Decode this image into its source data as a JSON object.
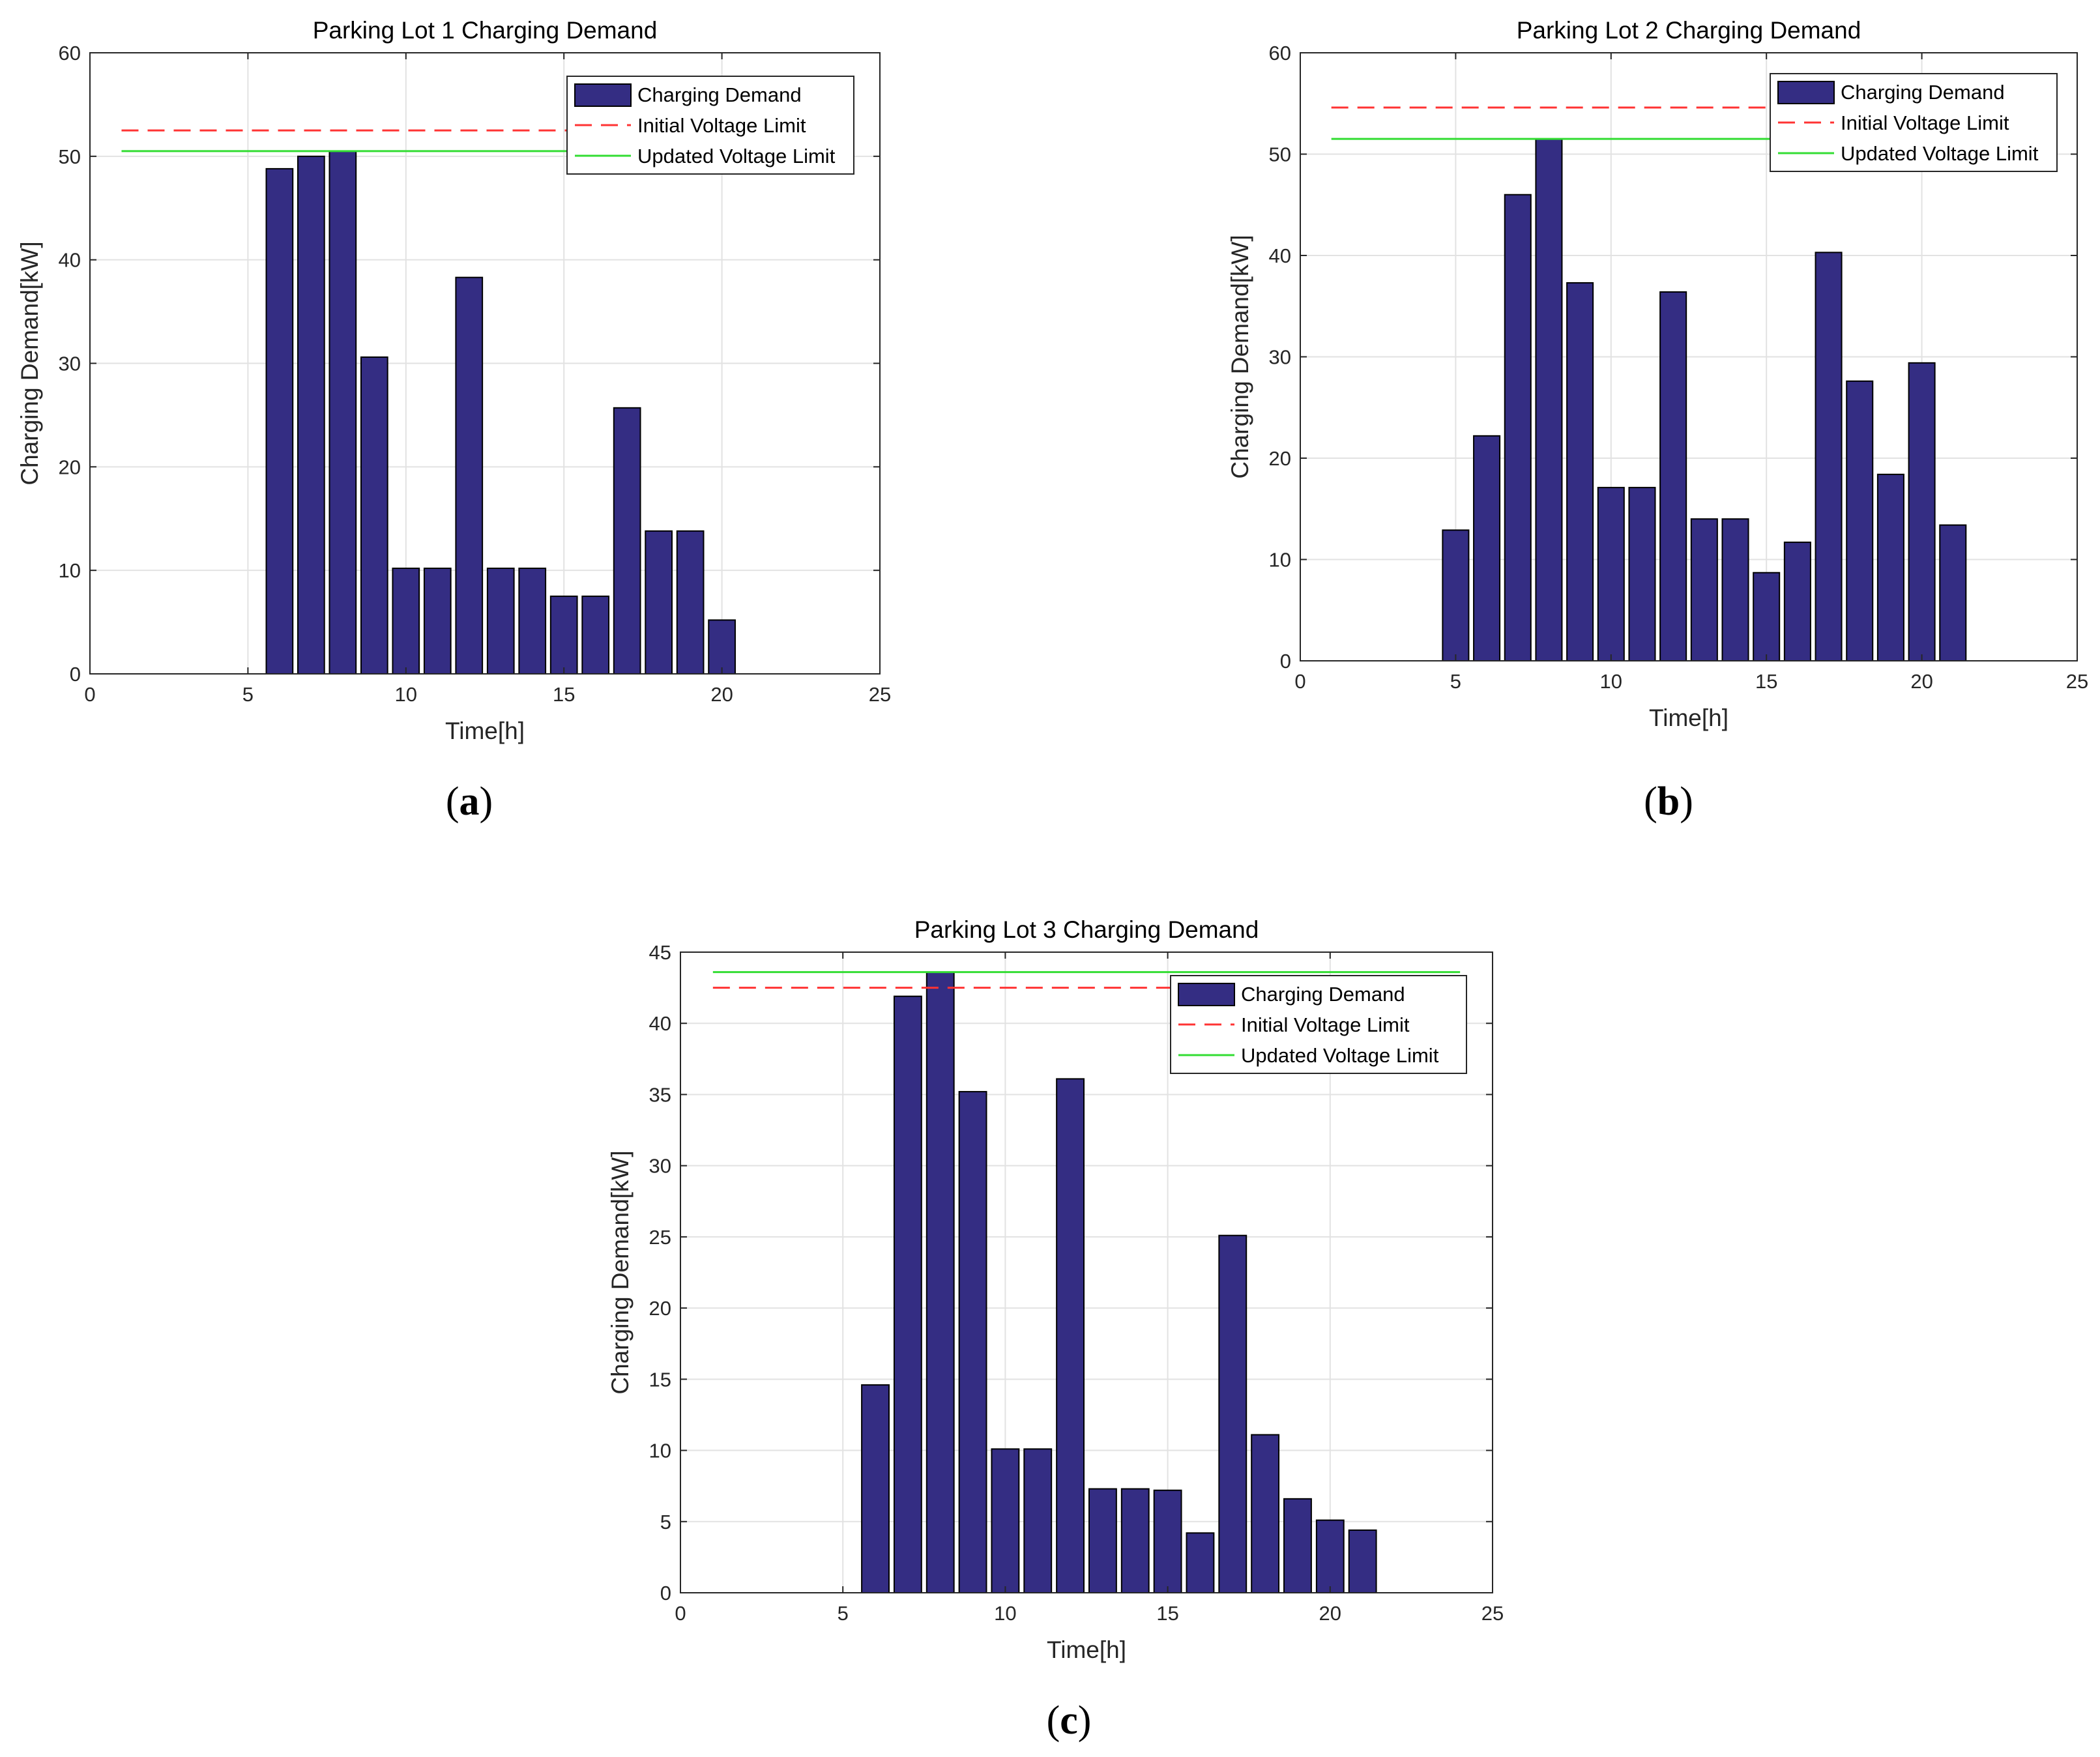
{
  "colors": {
    "bar": "#342d83",
    "bar_edge": "#000000",
    "initial_limit": "#ff3333",
    "updated_limit": "#33dd33",
    "grid": "#e2e2e2",
    "axis": "#262626"
  },
  "chart_data": [
    {
      "type": "bar",
      "panel": "a",
      "caption_letter": "a",
      "title": "Parking Lot 1 Charging Demand",
      "xlabel": "Time[h]",
      "ylabel": "Charging Demand[kW]",
      "xlim": [
        0,
        25
      ],
      "ylim": [
        0,
        60
      ],
      "xticks": [
        0,
        5,
        10,
        15,
        20,
        25
      ],
      "yticks": [
        0,
        10,
        20,
        30,
        40,
        50,
        60
      ],
      "grid": true,
      "legend_position": "top-right",
      "legend": [
        "Charging Demand",
        "Initial Voltage Limit",
        "Updated Voltage Limit"
      ],
      "x": [
        6,
        7,
        8,
        9,
        10,
        11,
        12,
        13,
        14,
        15,
        16,
        17,
        18,
        19,
        20
      ],
      "values": [
        48.8,
        50.0,
        50.5,
        30.6,
        10.2,
        10.2,
        38.3,
        10.2,
        10.2,
        7.5,
        7.5,
        25.7,
        13.8,
        13.8,
        5.2
      ],
      "initial_voltage_limit": 52.5,
      "updated_voltage_limit": 50.5,
      "limit_x_range": [
        1,
        24
      ]
    },
    {
      "type": "bar",
      "panel": "b",
      "caption_letter": "b",
      "title": "Parking Lot 2 Charging Demand",
      "xlabel": "Time[h]",
      "ylabel": "Charging Demand[kW]",
      "xlim": [
        0,
        25
      ],
      "ylim": [
        0,
        60
      ],
      "xticks": [
        0,
        5,
        10,
        15,
        20,
        25
      ],
      "yticks": [
        0,
        10,
        20,
        30,
        40,
        50,
        60
      ],
      "grid": true,
      "legend_position": "top-right",
      "legend": [
        "Charging Demand",
        "Initial Voltage Limit",
        "Updated Voltage Limit"
      ],
      "x": [
        5,
        6,
        7,
        8,
        9,
        10,
        11,
        12,
        13,
        14,
        15,
        16,
        17,
        18,
        19,
        20,
        21
      ],
      "values": [
        12.9,
        22.2,
        46.0,
        51.5,
        37.3,
        17.1,
        17.1,
        36.4,
        14.0,
        14.0,
        8.7,
        11.7,
        40.3,
        27.6,
        18.4,
        29.4,
        13.4
      ],
      "initial_voltage_limit": 54.6,
      "updated_voltage_limit": 51.5,
      "limit_x_range": [
        1,
        24
      ]
    },
    {
      "type": "bar",
      "panel": "c",
      "caption_letter": "c",
      "title": "Parking Lot 3 Charging Demand",
      "xlabel": "Time[h]",
      "ylabel": "Charging Demand[kW]",
      "xlim": [
        0,
        25
      ],
      "ylim": [
        0,
        45
      ],
      "xticks": [
        0,
        5,
        10,
        15,
        20,
        25
      ],
      "yticks": [
        0,
        5,
        10,
        15,
        20,
        25,
        30,
        35,
        40,
        45
      ],
      "grid": true,
      "legend_position": "top-right",
      "legend": [
        "Charging Demand",
        "Initial Voltage Limit",
        "Updated Voltage Limit"
      ],
      "x": [
        6,
        7,
        8,
        9,
        10,
        11,
        12,
        13,
        14,
        15,
        16,
        17,
        18,
        19,
        20,
        21
      ],
      "values": [
        14.6,
        41.9,
        43.6,
        35.2,
        10.1,
        10.1,
        36.1,
        7.3,
        7.3,
        7.2,
        4.2,
        25.1,
        11.1,
        6.6,
        5.1,
        4.4
      ],
      "initial_voltage_limit": 42.5,
      "updated_voltage_limit": 43.6,
      "limit_x_range": [
        1,
        24
      ]
    }
  ]
}
